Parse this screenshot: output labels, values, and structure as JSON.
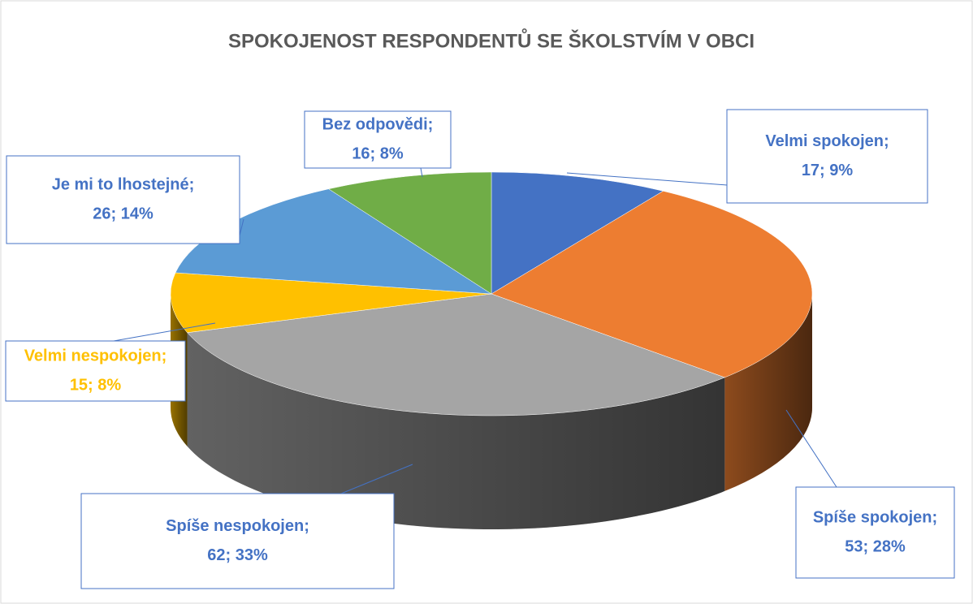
{
  "chart_data": {
    "type": "pie",
    "title": "SPOKOJENOST RESPONDENTŮ SE ŠKOLSTVÍM V OBCI",
    "categories": [
      "Velmi spokojen;",
      "Spíše spokojen;",
      "Spíše nespokojen;",
      "Velmi nespokojen;",
      "Je mi to lhostejné;",
      "Bez odpovědi;"
    ],
    "values": [
      17,
      53,
      62,
      15,
      26,
      16
    ],
    "value_labels": [
      "17; 9%",
      "53; 28%",
      "62; 33%",
      "15; 8%",
      "26; 14%",
      "16; 8%"
    ],
    "colors": [
      "#4472c4",
      "#ed7d31",
      "#a5a5a5",
      "#ffc000",
      "#5b9bd5",
      "#70ad47"
    ],
    "three_d": true
  }
}
